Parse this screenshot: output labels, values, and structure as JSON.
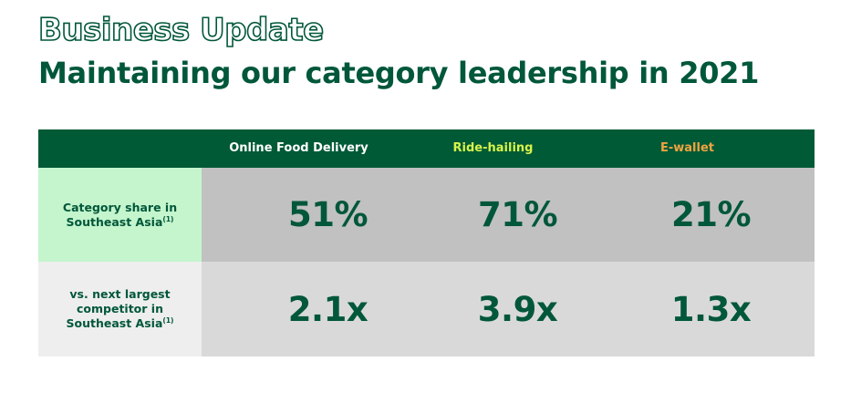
{
  "header": {
    "title": "Business Update",
    "subtitle": "Maintaining our category leadership in 2021"
  },
  "table": {
    "columns": [
      {
        "label": "Online Food Delivery",
        "color": "#ffffff"
      },
      {
        "label": "Ride-hailing",
        "color": "#d8f34a"
      },
      {
        "label": "E-wallet",
        "color": "#f0a341"
      }
    ],
    "rows": [
      {
        "label": "Category share in Southeast Asia",
        "footnote": "(1)",
        "values": [
          "51%",
          "71%",
          "21%"
        ]
      },
      {
        "label": "vs. next largest competitor in Southeast Asia",
        "footnote": "(1)",
        "values": [
          "2.1x",
          "3.9x",
          "1.3x"
        ]
      }
    ]
  },
  "colors": {
    "brand_green": "#00573a",
    "header_bg": "#005a36",
    "highlight_green": "#c4f5cc"
  }
}
